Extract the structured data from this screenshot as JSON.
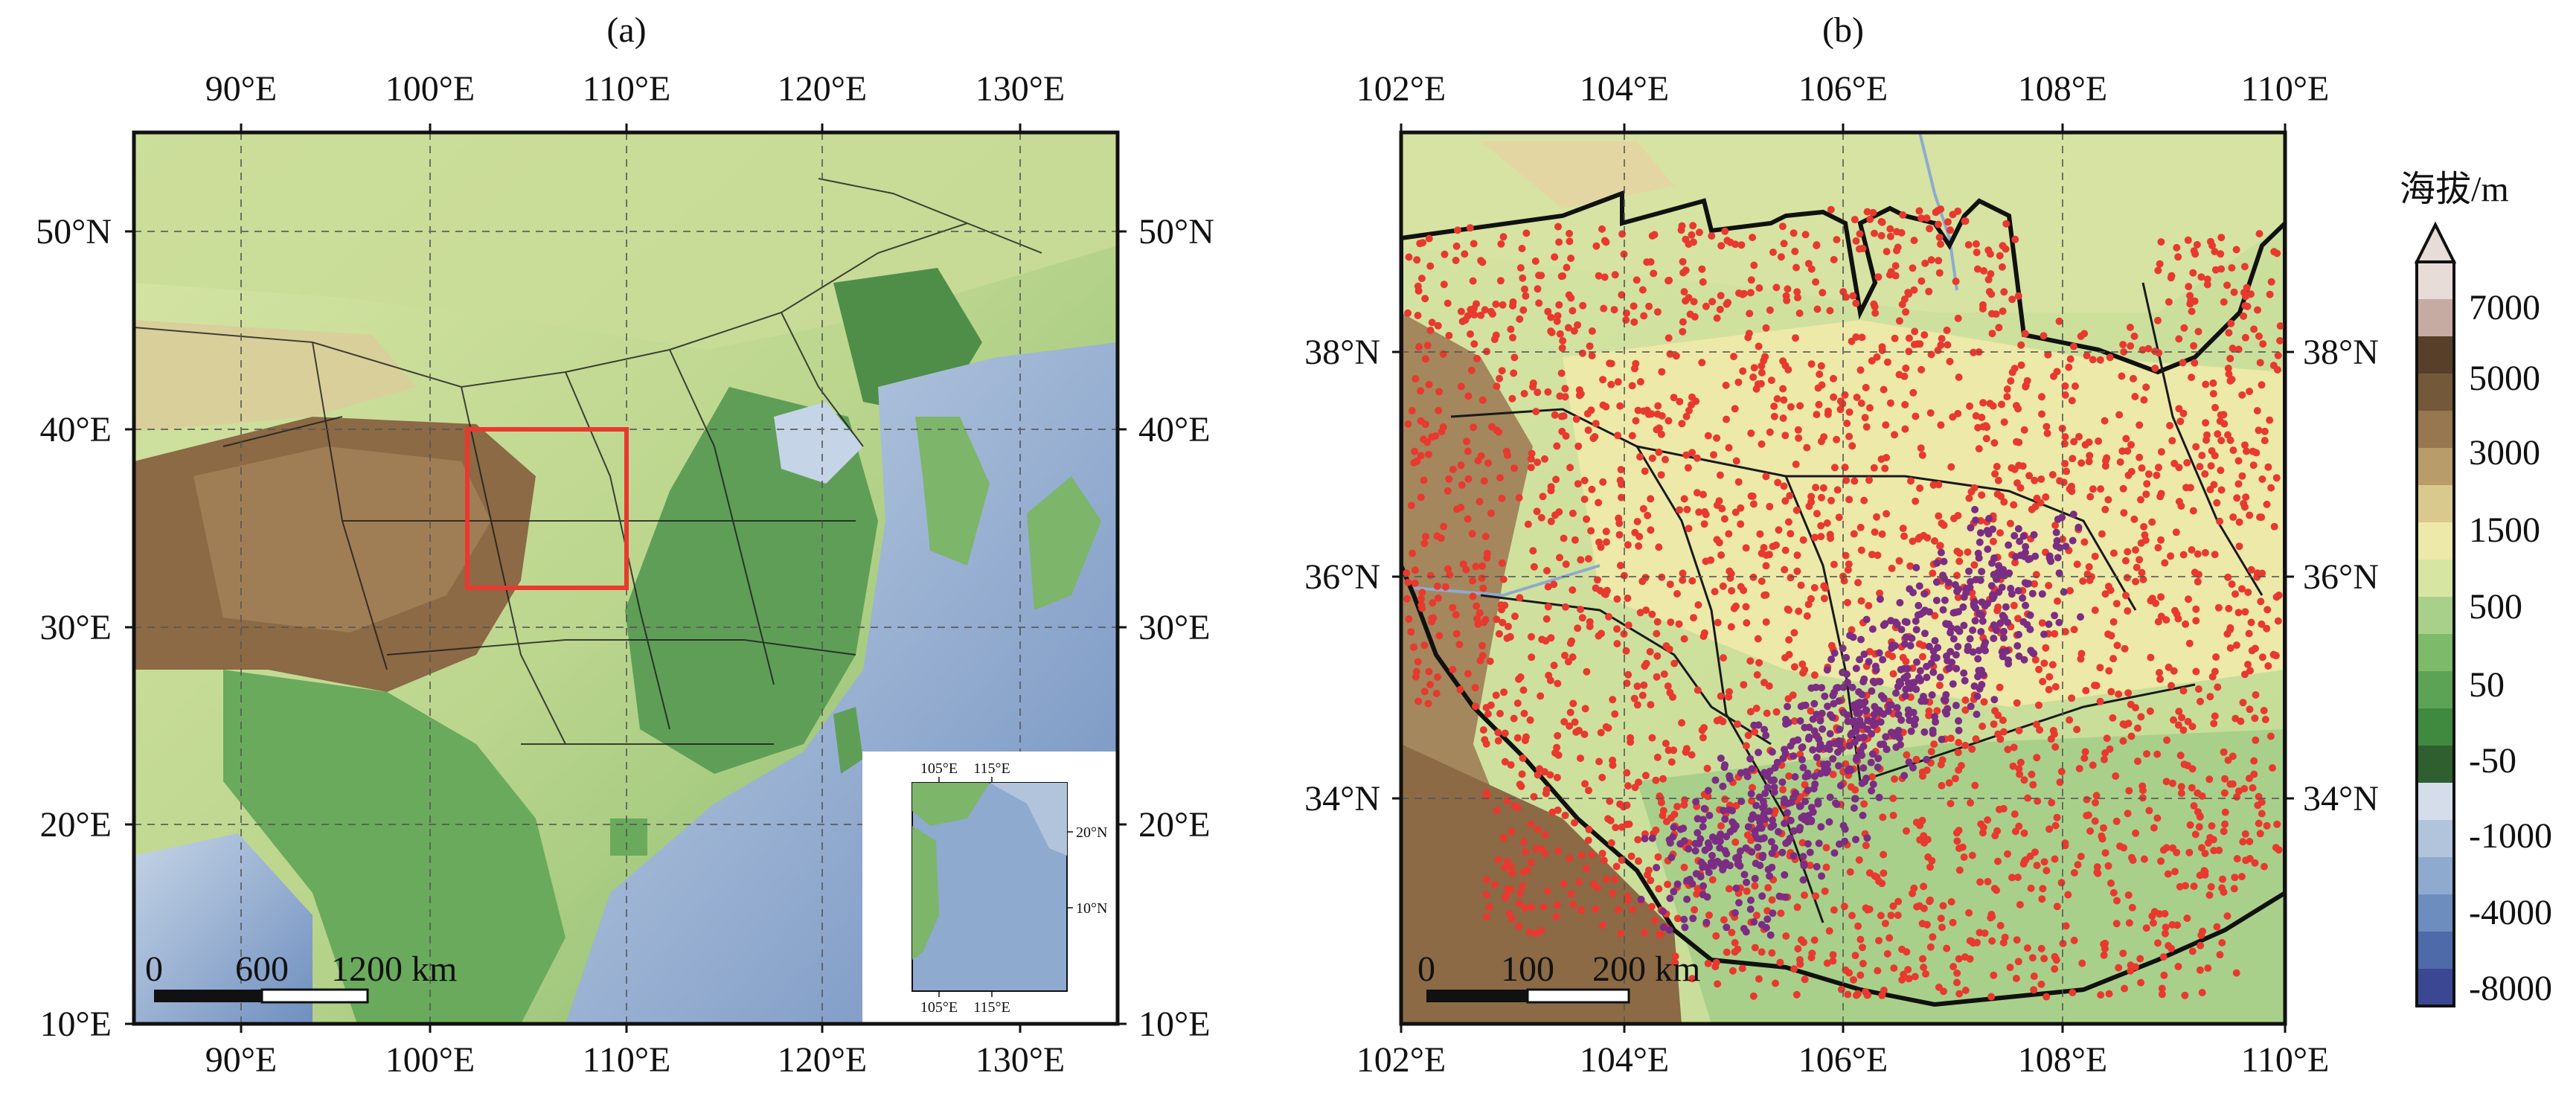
{
  "panel_a": {
    "label": "(a)",
    "top_ticks": [
      "90°E",
      "100°E",
      "110°E",
      "120°E",
      "130°E"
    ],
    "bottom_ticks": [
      "90°E",
      "100°E",
      "110°E",
      "120°E",
      "130°E"
    ],
    "left_ticks": [
      "50°N",
      "40°E",
      "30°E",
      "20°E",
      "10°E"
    ],
    "right_ticks": [
      "50°N",
      "40°E",
      "30°E",
      "20°E",
      "10°E"
    ],
    "study_box_color": "#e8392f",
    "scalebar": {
      "zero": "0",
      "mid": "600",
      "end": "1200 km"
    },
    "inset": {
      "top_ticks": [
        "105°E",
        "115°E"
      ],
      "bottom_ticks": [
        "105°E",
        "115°E"
      ],
      "right_ticks": [
        "20°N",
        "10°N"
      ]
    }
  },
  "panel_b": {
    "label": "(b)",
    "top_ticks": [
      "102°E",
      "104°E",
      "106°E",
      "108°E",
      "110°E"
    ],
    "bottom_ticks": [
      "102°E",
      "104°E",
      "106°E",
      "108°E",
      "110°E"
    ],
    "left_ticks": [
      "38°N",
      "36°N",
      "34°N"
    ],
    "right_ticks": [
      "38°N",
      "36°N",
      "34°N"
    ],
    "point_colors": {
      "red": "#e8392f",
      "purple": "#7b2d83"
    },
    "scalebar": {
      "zero": "0",
      "mid": "100",
      "end": "200 km"
    }
  },
  "colorbar": {
    "title": "海拔/m",
    "ticks": [
      "7000",
      "5000",
      "3000",
      "1500",
      "500",
      "50",
      "-50",
      "-1000",
      "-4000",
      "-8000"
    ],
    "colors": [
      "#3b4792",
      "#4f6aa8",
      "#6d8dbf",
      "#8eaacf",
      "#b2c3dc",
      "#d5ddeb",
      "#2f5e2f",
      "#3f8a3f",
      "#5da356",
      "#7dba6a",
      "#a9d08a",
      "#d6e6a2",
      "#ede9a9",
      "#d9c98c",
      "#b89c6a",
      "#97774f",
      "#735839",
      "#573f2a",
      "#c6aba3",
      "#e8dcd8"
    ]
  }
}
